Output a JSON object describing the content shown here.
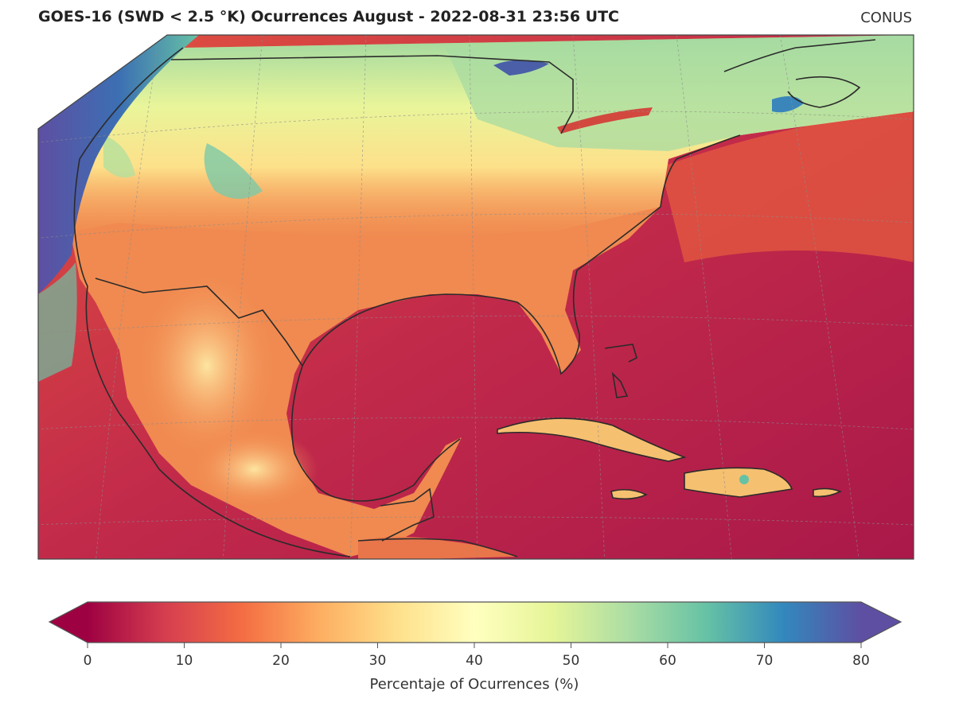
{
  "header": {
    "title": "GOES-16 (SWD < 2.5 °K) Ocurrences August - 2022-08-31 23:56 UTC",
    "region": "CONUS"
  },
  "colorbar": {
    "label": "Percentaje of Ocurrences (%)",
    "ticks": [
      "0",
      "10",
      "20",
      "30",
      "40",
      "50",
      "60",
      "70",
      "80"
    ],
    "min": 0,
    "max": 80,
    "colormap": "Spectral",
    "colors": [
      "#9e0142",
      "#d53e4f",
      "#f46d43",
      "#fdae61",
      "#fee08b",
      "#ffffbf",
      "#e6f598",
      "#abdda4",
      "#66c2a5",
      "#3288bd",
      "#5e4fa2"
    ]
  },
  "map": {
    "ocean_color": "#b41f4a",
    "land_warm_color": "#f08a50",
    "land_north_color": "#f4e08a",
    "coast_color": "#333333",
    "grid_color": "#8c8c8c"
  }
}
